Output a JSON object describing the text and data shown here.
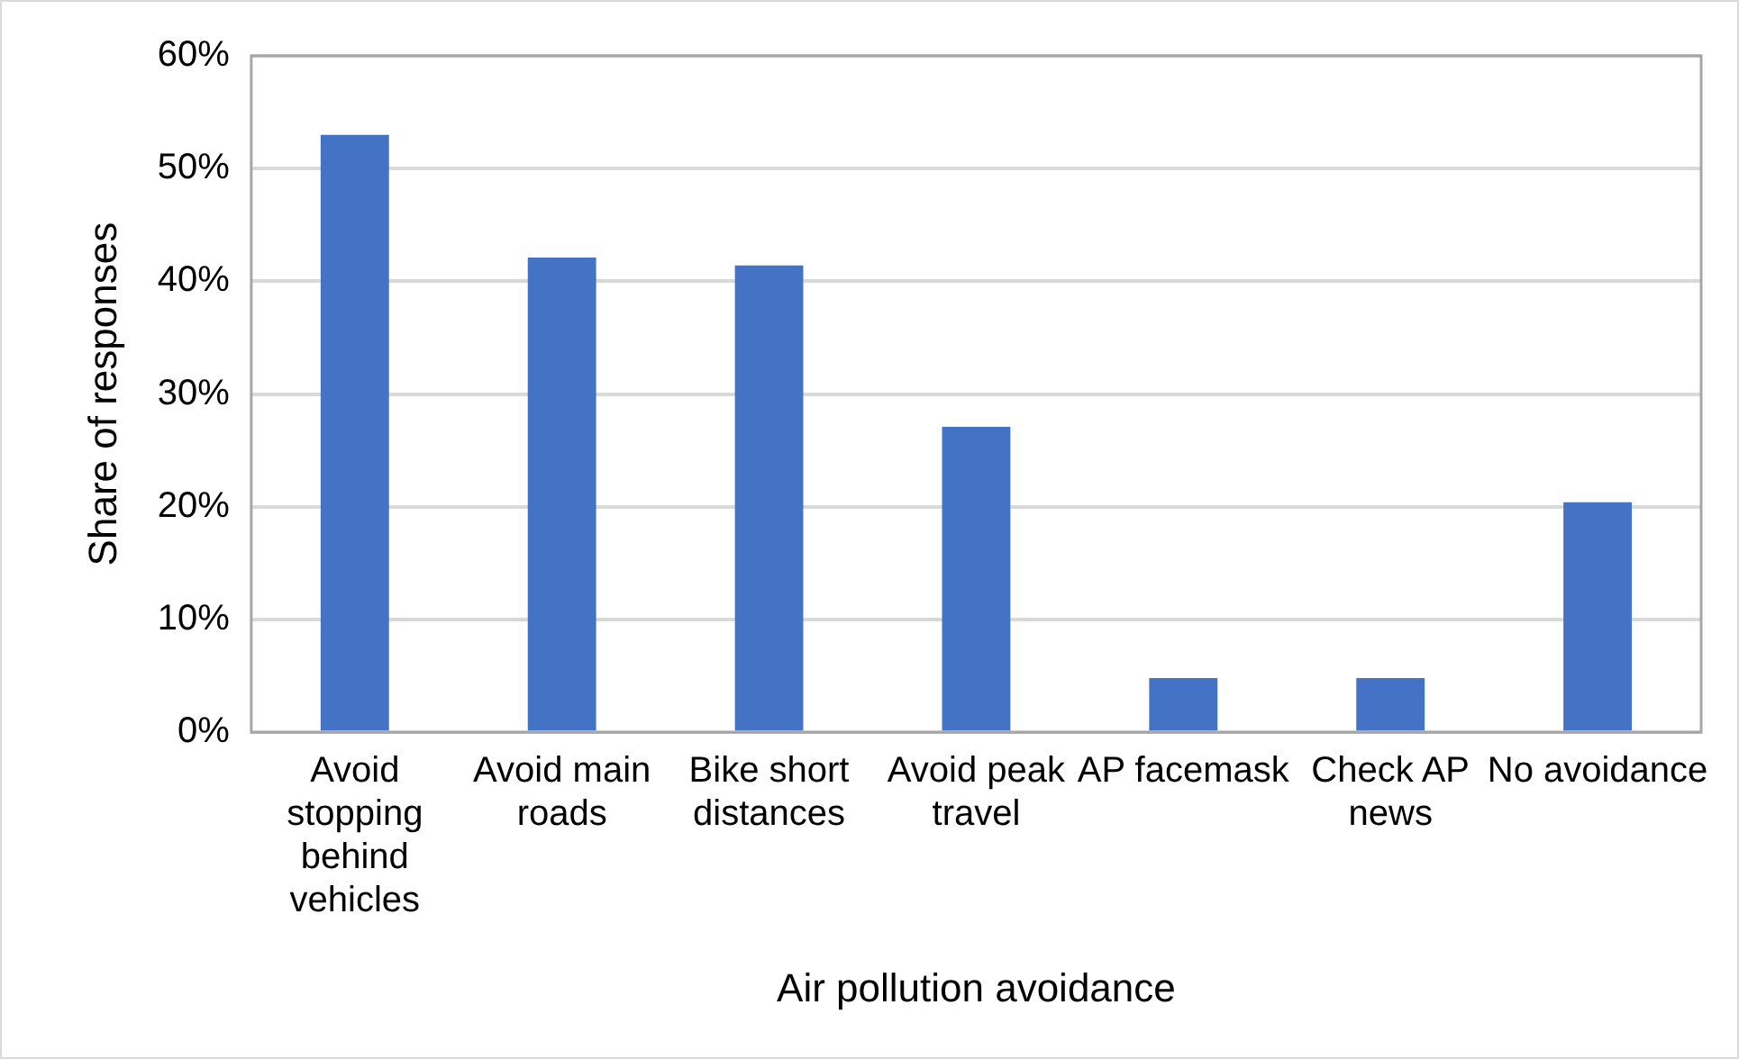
{
  "chart_data": {
    "type": "bar",
    "xlabel": "Air pollution avoidance",
    "ylabel": "Share of responses",
    "categories": [
      "Avoid stopping behind vehicles",
      "Avoid main roads",
      "Bike short distances",
      "Avoid peak travel",
      "AP facemask",
      "Check AP news",
      "No avoidance"
    ],
    "values": [
      53.0,
      42.1,
      41.4,
      27.1,
      4.8,
      4.8,
      20.4
    ],
    "color": "#4472c4",
    "ylim": [
      0,
      60
    ],
    "yticks": [
      {
        "value": 0,
        "label": "0%"
      },
      {
        "value": 10,
        "label": "10%"
      },
      {
        "value": 20,
        "label": "20%"
      },
      {
        "value": 30,
        "label": "30%"
      },
      {
        "value": 40,
        "label": "40%"
      },
      {
        "value": 50,
        "label": "50%"
      },
      {
        "value": 60,
        "label": "60%"
      }
    ],
    "grid": "y",
    "legend": false
  }
}
